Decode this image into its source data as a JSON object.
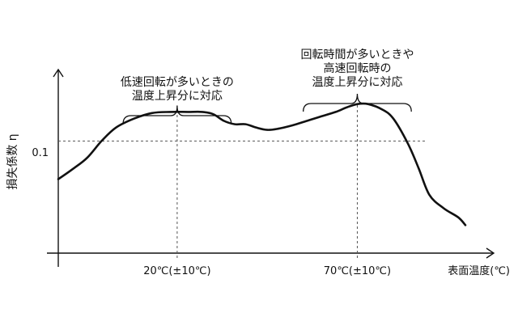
{
  "chart_data": {
    "type": "line",
    "title": "",
    "ylabel": "損失係数 η",
    "xlabel": "表面温度(℃)",
    "y_tick_labels": [
      "0.1"
    ],
    "x_marks": [
      {
        "label": "20℃(±10℃)",
        "x": 20
      },
      {
        "label": "70℃(±10℃)",
        "x": 70
      }
    ],
    "xlim": [
      -13,
      100
    ],
    "ylim": [
      0,
      0.21
    ],
    "reference_y": 0.1,
    "series": [
      {
        "points": [
          [
            -13,
            0.066
          ],
          [
            -9,
            0.075
          ],
          [
            -5,
            0.085
          ],
          [
            -1,
            0.1
          ],
          [
            3,
            0.112
          ],
          [
            8,
            0.12
          ],
          [
            13,
            0.125
          ],
          [
            18,
            0.126
          ],
          [
            23,
            0.126
          ],
          [
            27,
            0.126
          ],
          [
            30,
            0.124
          ],
          [
            33,
            0.118
          ],
          [
            36,
            0.115
          ],
          [
            39,
            0.115
          ],
          [
            42,
            0.112
          ],
          [
            45,
            0.11
          ],
          [
            48,
            0.111
          ],
          [
            52,
            0.114
          ],
          [
            56,
            0.118
          ],
          [
            60,
            0.122
          ],
          [
            64,
            0.126
          ],
          [
            67,
            0.13
          ],
          [
            70,
            0.133
          ],
          [
            73,
            0.133
          ],
          [
            77,
            0.128
          ],
          [
            80,
            0.12
          ],
          [
            84,
            0.098
          ],
          [
            87,
            0.076
          ],
          [
            90,
            0.052
          ],
          [
            94,
            0.04
          ],
          [
            98,
            0.032
          ],
          [
            100,
            0.025
          ]
        ]
      }
    ],
    "annotations": [
      {
        "lines": [
          "低速回転が多いときの",
          "温度上昇分に対応"
        ],
        "x_from": 5,
        "x_to": 35
      },
      {
        "lines": [
          "回転時間が多いときや",
          "高速回転時の",
          "温度上昇分に対応"
        ],
        "x_from": 55,
        "x_to": 85
      }
    ]
  }
}
